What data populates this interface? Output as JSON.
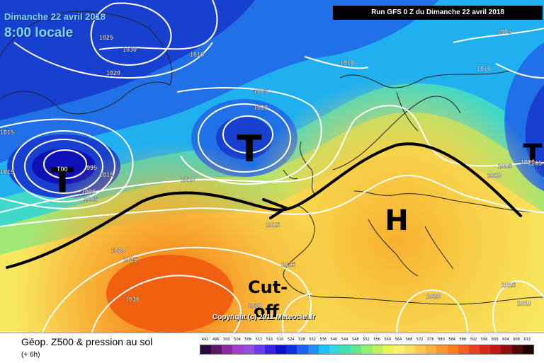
{
  "header": {
    "date": "Dimanche 22 avril 2018",
    "time": "8:00 locale",
    "run": "Run GFS 0 Z du Dimanche 22 avril 2018"
  },
  "annotations": {
    "lows": [
      "T",
      "T",
      "T"
    ],
    "high": "H",
    "cutoff_line1": "Cut-",
    "cutoff_line2": "off"
  },
  "isobar_labels": [
    "1030",
    "1025",
    "1020",
    "1015",
    "1010",
    "1005",
    "1005",
    "1000",
    "995",
    "T00",
    "1000",
    "1005",
    "1015",
    "1015",
    "1010",
    "1010",
    "1005",
    "1010",
    "1005",
    "1000",
    "1015",
    "1015",
    "1020",
    "1025",
    "1030",
    "1015",
    "1010",
    "1020",
    "1015",
    "1010"
  ],
  "copyright": "Copyright (c) 2011 Meteociel.fr",
  "footer": {
    "title": "Géop. Z500 & pression au sol",
    "subtitle": "(+ 6h)"
  },
  "scale": {
    "labels": [
      "492",
      "496",
      "500",
      "504",
      "508",
      "512",
      "516",
      "520",
      "524",
      "528",
      "532",
      "536",
      "540",
      "544",
      "548",
      "552",
      "556",
      "560",
      "564",
      "568",
      "572",
      "576",
      "580",
      "584",
      "588",
      "592",
      "596",
      "600",
      "604",
      "608",
      "612"
    ],
    "colors": [
      "#2a0a3a",
      "#5a1a6a",
      "#8a2aa0",
      "#a040c8",
      "#9050e0",
      "#6a3af0",
      "#3a20e0",
      "#1010c8",
      "#1030e0",
      "#2060f0",
      "#2090f8",
      "#20c0f8",
      "#30d8e0",
      "#40e0b0",
      "#60e890",
      "#90f070",
      "#c0f060",
      "#e8f850",
      "#f8f070",
      "#f8e060",
      "#f8c850",
      "#f8b040",
      "#f89830",
      "#f88020",
      "#f06020",
      "#e84020",
      "#d82818",
      "#c01818",
      "#901010",
      "#500808",
      "#200000"
    ]
  }
}
